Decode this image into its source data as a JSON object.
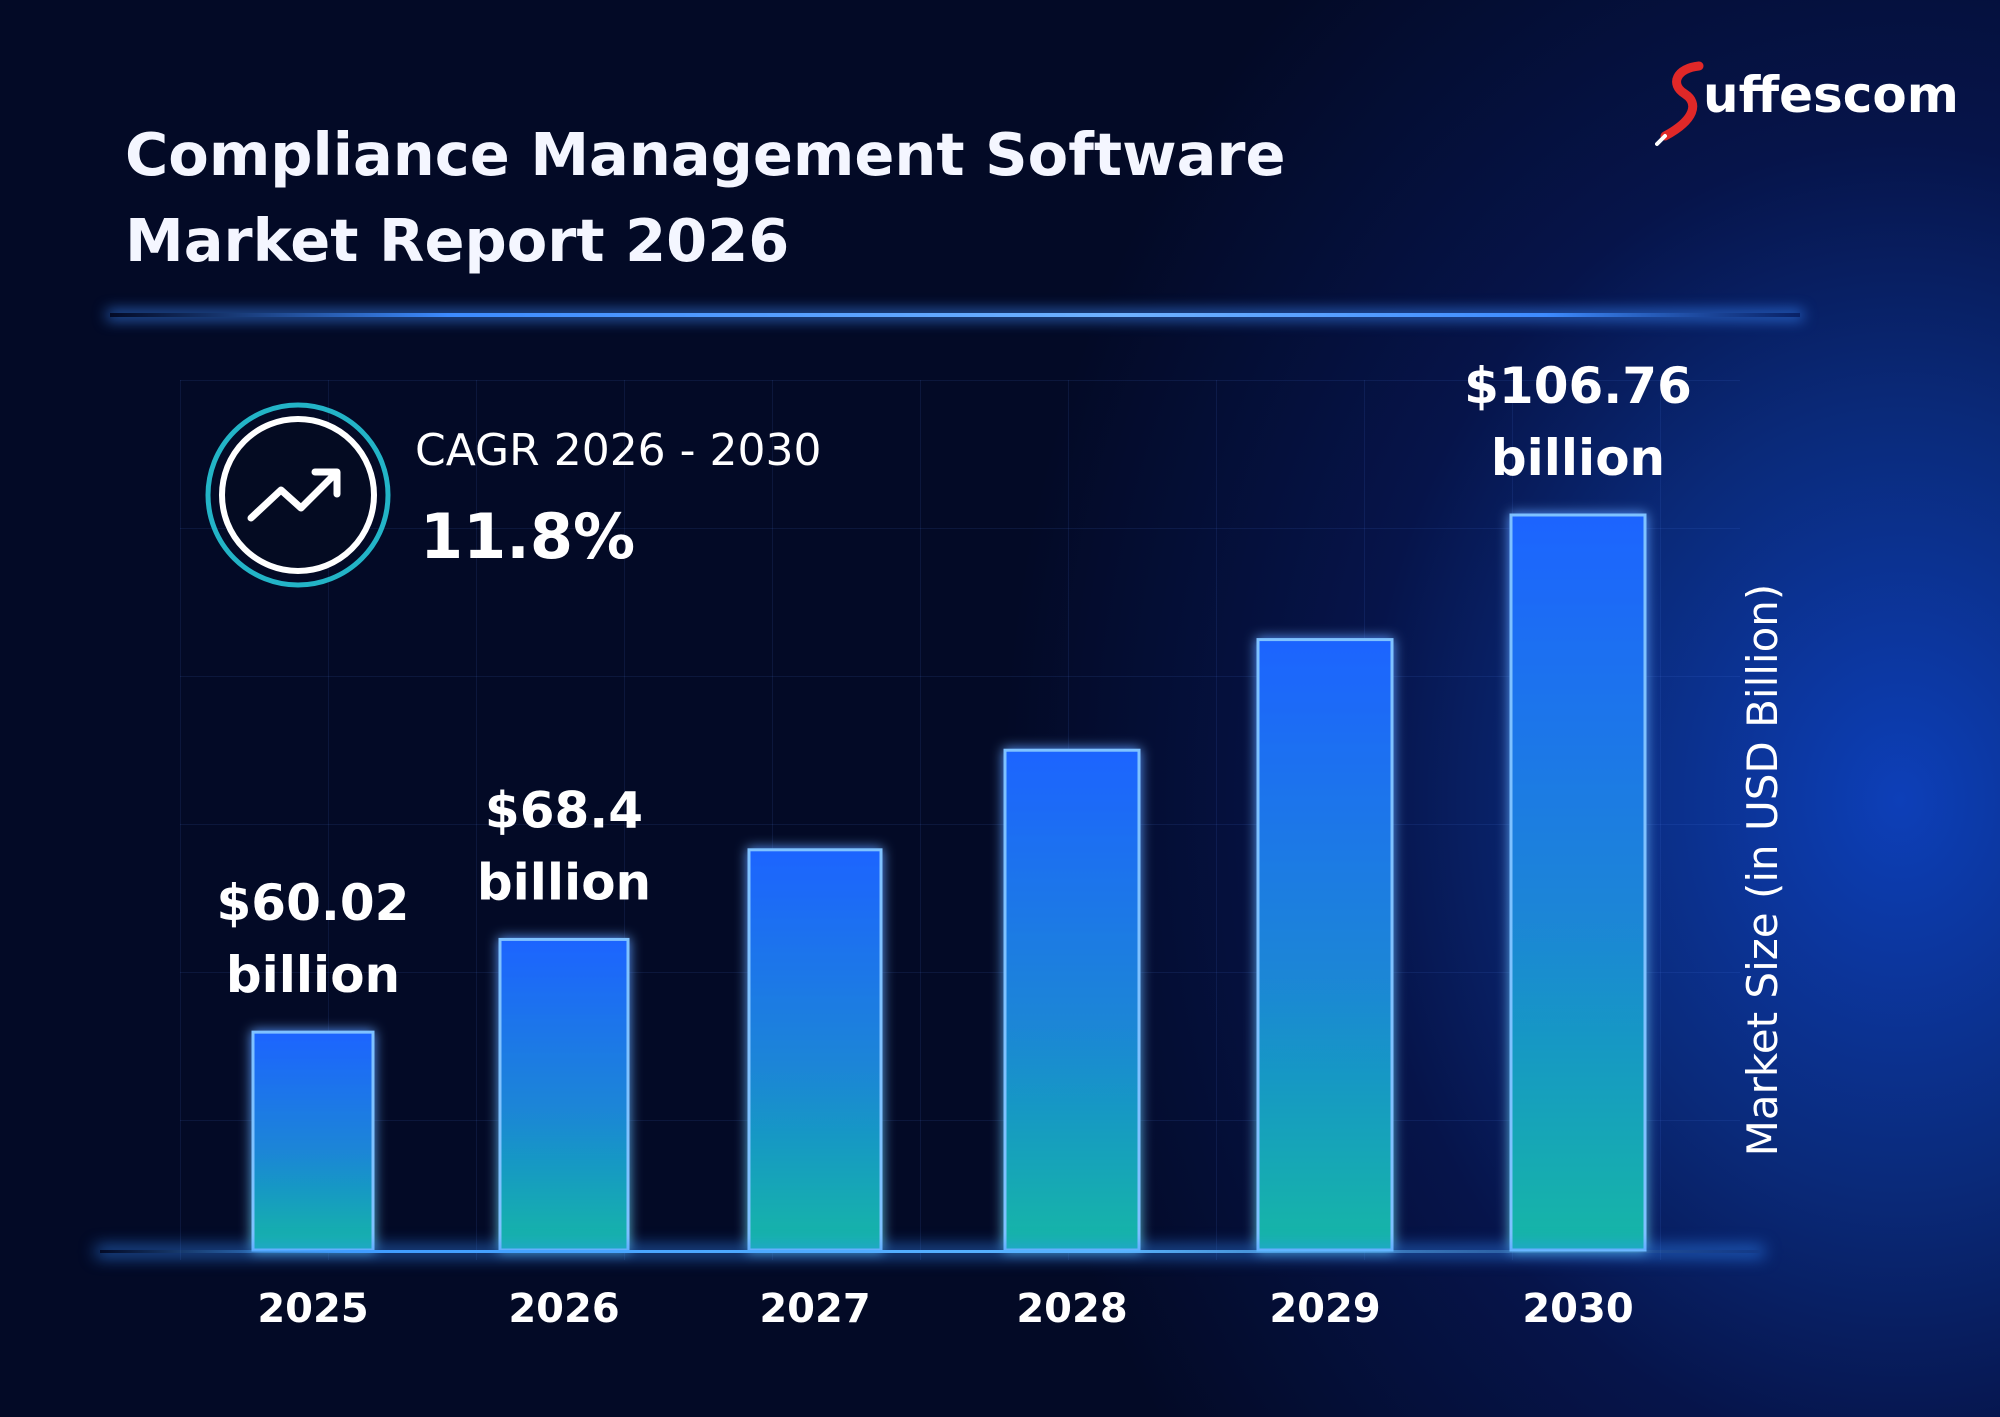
{
  "title_lines": [
    "Compliance Management Software",
    "Market Report 2026"
  ],
  "brand": {
    "name": "uffescom",
    "accent": "#e02828"
  },
  "cagr": {
    "label": "CAGR 2026 - 2030",
    "value": "11.8%"
  },
  "colors": {
    "bar_top": "#1f6bff",
    "bar_bottom": "#19b4a8",
    "accent_glow": "#3d8bff"
  },
  "chart_data": {
    "type": "bar",
    "title": "Compliance Management Software Market Report 2026",
    "xlabel": "",
    "ylabel": "Market Size (in USD Billion)",
    "categories": [
      "2025",
      "2026",
      "2027",
      "2028",
      "2029",
      "2030"
    ],
    "values": [
      60.02,
      68.4,
      76.5,
      85.5,
      95.5,
      106.76
    ],
    "data_labels": [
      {
        "index": 0,
        "lines": [
          "$60.02",
          "billion"
        ]
      },
      {
        "index": 1,
        "lines": [
          "$68.4",
          "billion"
        ]
      },
      {
        "index": 5,
        "lines": [
          "$106.76",
          "billion"
        ]
      }
    ],
    "grid": true,
    "legend": "none"
  }
}
